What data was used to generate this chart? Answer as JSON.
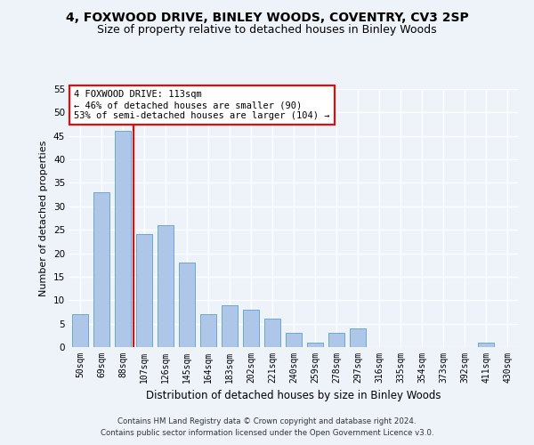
{
  "title1": "4, FOXWOOD DRIVE, BINLEY WOODS, COVENTRY, CV3 2SP",
  "title2": "Size of property relative to detached houses in Binley Woods",
  "xlabel": "Distribution of detached houses by size in Binley Woods",
  "ylabel": "Number of detached properties",
  "footnote1": "Contains HM Land Registry data © Crown copyright and database right 2024.",
  "footnote2": "Contains public sector information licensed under the Open Government Licence v3.0.",
  "categories": [
    "50sqm",
    "69sqm",
    "88sqm",
    "107sqm",
    "126sqm",
    "145sqm",
    "164sqm",
    "183sqm",
    "202sqm",
    "221sqm",
    "240sqm",
    "259sqm",
    "278sqm",
    "297sqm",
    "316sqm",
    "335sqm",
    "354sqm",
    "373sqm",
    "392sqm",
    "411sqm",
    "430sqm"
  ],
  "values": [
    7,
    33,
    46,
    24,
    26,
    18,
    7,
    9,
    8,
    6,
    3,
    1,
    3,
    4,
    0,
    0,
    0,
    0,
    0,
    1,
    0
  ],
  "bar_color": "#aec6e8",
  "bar_edge_color": "#5a9fd4",
  "vline_x": 2.5,
  "vline_color": "red",
  "annotation_line1": "4 FOXWOOD DRIVE: 113sqm",
  "annotation_line2": "← 46% of detached houses are smaller (90)",
  "annotation_line3": "53% of semi-detached houses are larger (104) →",
  "ylim": [
    0,
    55
  ],
  "yticks": [
    0,
    5,
    10,
    15,
    20,
    25,
    30,
    35,
    40,
    45,
    50,
    55
  ],
  "background_color": "#eef2f9",
  "grid_color": "#ffffff",
  "title_fontsize": 10,
  "subtitle_fontsize": 9,
  "axis_label_fontsize": 8,
  "tick_fontsize": 7,
  "bar_width": 0.75
}
